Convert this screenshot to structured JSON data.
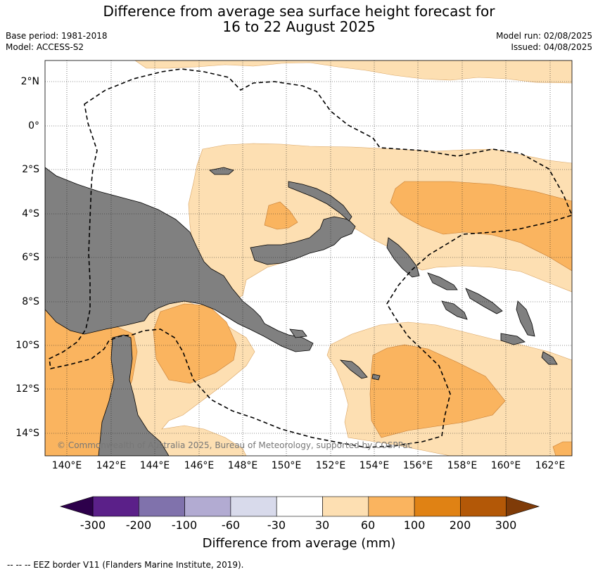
{
  "title": {
    "line1": "Difference from average sea surface height forecast for",
    "line2": "16 to 22 August 2025"
  },
  "meta": {
    "base_period": "Base period: 1981-2018",
    "model": "Model: ACCESS-S2",
    "model_run": "Model run: 02/08/2025",
    "issued": "Issued: 04/08/2025"
  },
  "map": {
    "lat_labels": [
      "2°N",
      "0°",
      "2°S",
      "4°S",
      "6°S",
      "8°S",
      "10°S",
      "12°S",
      "14°S"
    ],
    "lon_labels": [
      "140°E",
      "142°E",
      "144°E",
      "146°E",
      "148°E",
      "150°E",
      "152°E",
      "154°E",
      "156°E",
      "158°E",
      "160°E",
      "162°E"
    ],
    "copyright": "© Commonwealth of Australia 2025, Bureau of Meteorology, supported by COSPPac",
    "land_color": "#808080",
    "eez_line_style": "dashed"
  },
  "colorbar": {
    "title": "Difference from average (mm)",
    "tick_labels": [
      "-300",
      "-200",
      "-100",
      "-60",
      "-30",
      "30",
      "60",
      "100",
      "200",
      "300"
    ],
    "colors": [
      "#5b2089",
      "#8072ac",
      "#b2abd2",
      "#d8daeb",
      "#ffffff",
      "#fddfb2",
      "#fab45f",
      "#e08214",
      "#b35807"
    ],
    "extend_low_color": "#2d004b",
    "extend_high_color": "#7f3b08"
  },
  "legend_note": "--  --  -- EEZ border V11 (Flanders Marine Institute, 2019)."
}
